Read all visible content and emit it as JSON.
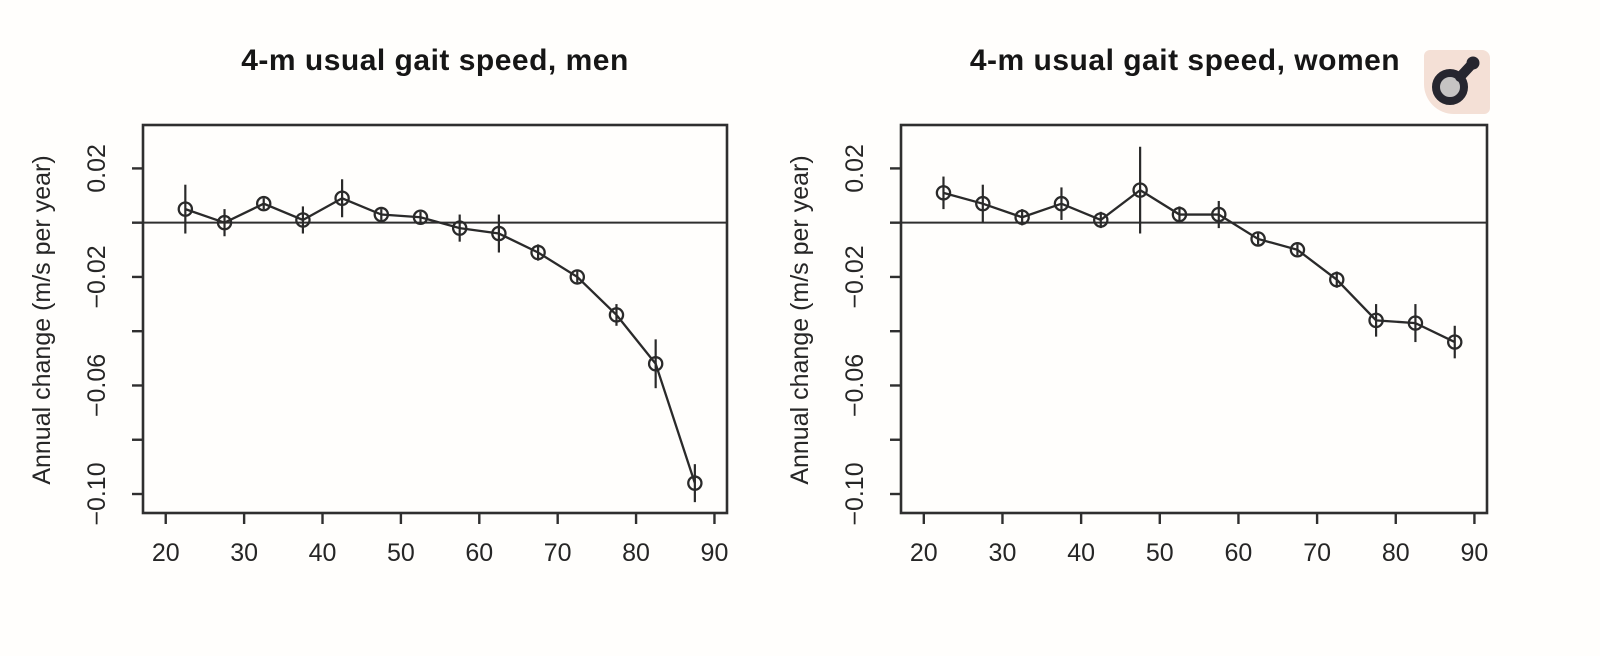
{
  "page": {
    "background": "#fffefc"
  },
  "style": {
    "plot_line_color": "#2a2a2a",
    "axis_color": "#2f2f2f",
    "tick_text_color": "#262626",
    "title_color": "#161616"
  },
  "header_icon": {
    "name": "male-symbol",
    "background": "#f4e0d6",
    "color": "#26262f",
    "inner_fill": "#c6c4c3"
  },
  "chart_data": [
    {
      "type": "line",
      "title": "4-m usual gait speed, men",
      "xlabel": "",
      "ylabel": "Annual change (m/s per year)",
      "x": [
        22.5,
        27.5,
        32.5,
        37.5,
        42.5,
        47.5,
        52.5,
        57.5,
        62.5,
        67.5,
        72.5,
        77.5,
        82.5,
        87.5
      ],
      "values": [
        0.005,
        0.0,
        0.007,
        0.001,
        0.009,
        0.003,
        0.002,
        -0.002,
        -0.004,
        -0.011,
        -0.02,
        -0.034,
        -0.052,
        -0.096
      ],
      "error": [
        0.009,
        0.005,
        0.002,
        0.005,
        0.007,
        0.002,
        0.002,
        0.005,
        0.007,
        0.003,
        0.002,
        0.004,
        0.009,
        0.007
      ],
      "xticks": [
        20,
        30,
        40,
        50,
        60,
        70,
        80,
        90
      ],
      "yticks": [
        0.02,
        0.0,
        -0.02,
        -0.04,
        -0.06,
        -0.08,
        -0.1
      ],
      "ytick_labels": [
        "0.02",
        "",
        "−0.02",
        "",
        "−0.06",
        "",
        "−0.10"
      ],
      "xlim": [
        17.1,
        91.6
      ],
      "ylim": [
        -0.107,
        0.036
      ],
      "reference_line_y": 0,
      "grid": false,
      "legend": null,
      "marker": "open-circle",
      "error_bars": true
    },
    {
      "type": "line",
      "title": "4-m usual gait speed, women",
      "xlabel": "",
      "ylabel": "Annual change (m/s per year)",
      "x": [
        22.5,
        27.5,
        32.5,
        37.5,
        42.5,
        47.5,
        52.5,
        57.5,
        62.5,
        67.5,
        72.5,
        77.5,
        82.5,
        87.5
      ],
      "values": [
        0.011,
        0.007,
        0.002,
        0.007,
        0.001,
        0.012,
        0.003,
        0.003,
        -0.006,
        -0.01,
        -0.021,
        -0.036,
        -0.037,
        -0.044
      ],
      "error": [
        0.006,
        0.007,
        0.003,
        0.006,
        0.003,
        0.016,
        0.003,
        0.005,
        0.002,
        0.002,
        0.003,
        0.006,
        0.007,
        0.006
      ],
      "xticks": [
        20,
        30,
        40,
        50,
        60,
        70,
        80,
        90
      ],
      "yticks": [
        0.02,
        0.0,
        -0.02,
        -0.04,
        -0.06,
        -0.08,
        -0.1
      ],
      "ytick_labels": [
        "0.02",
        "",
        "−0.02",
        "",
        "−0.06",
        "",
        "−0.10"
      ],
      "xlim": [
        17.1,
        91.6
      ],
      "ylim": [
        -0.107,
        0.036
      ],
      "reference_line_y": 0,
      "grid": false,
      "legend": null,
      "marker": "open-circle",
      "error_bars": true
    }
  ]
}
